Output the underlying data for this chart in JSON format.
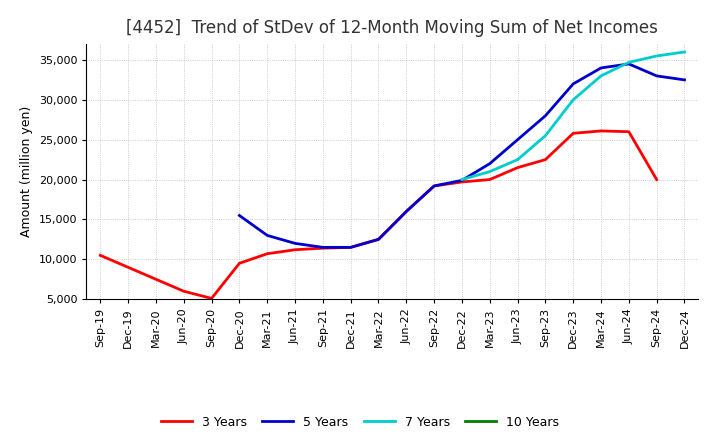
{
  "title": "[4452]  Trend of StDev of 12-Month Moving Sum of Net Incomes",
  "ylabel": "Amount (million yen)",
  "ylim": [
    5000,
    37000
  ],
  "yticks": [
    5000,
    10000,
    15000,
    20000,
    25000,
    30000,
    35000
  ],
  "background_color": "#ffffff",
  "grid_color": "#bbbbbb",
  "series": {
    "3 Years": {
      "color": "#ff0000",
      "x": [
        "Sep-19",
        "Dec-19",
        "Mar-20",
        "Jun-20",
        "Sep-20",
        "Dec-20",
        "Mar-21",
        "Jun-21",
        "Sep-21",
        "Dec-21",
        "Mar-22",
        "Jun-22",
        "Sep-22",
        "Dec-22",
        "Mar-23",
        "Jun-23",
        "Sep-23",
        "Dec-23",
        "Mar-24",
        "Jun-24",
        "Sep-24"
      ],
      "y": [
        10500,
        9000,
        7500,
        6000,
        5100,
        9500,
        10700,
        11200,
        11400,
        11500,
        12500,
        16000,
        19200,
        19700,
        20000,
        21500,
        22500,
        25800,
        26100,
        26000,
        20000
      ]
    },
    "5 Years": {
      "color": "#0000cc",
      "x": [
        "Dec-20",
        "Mar-21",
        "Jun-21",
        "Sep-21",
        "Dec-21",
        "Mar-22",
        "Jun-22",
        "Sep-22",
        "Dec-22",
        "Mar-23",
        "Jun-23",
        "Sep-23",
        "Dec-23",
        "Mar-24",
        "Jun-24",
        "Sep-24",
        "Dec-24"
      ],
      "y": [
        15500,
        13000,
        12000,
        11500,
        11500,
        12500,
        16000,
        19200,
        19900,
        22000,
        25000,
        28000,
        32000,
        34000,
        34500,
        33000,
        32500
      ]
    },
    "7 Years": {
      "color": "#00cccc",
      "x": [
        "Dec-22",
        "Mar-23",
        "Jun-23",
        "Sep-23",
        "Dec-23",
        "Mar-24",
        "Jun-24",
        "Sep-24",
        "Dec-24"
      ],
      "y": [
        20000,
        21000,
        22500,
        25500,
        30000,
        33000,
        34700,
        35500,
        36000
      ]
    },
    "10 Years": {
      "color": "#008000",
      "x": [],
      "y": []
    }
  },
  "x_labels": [
    "Sep-19",
    "Dec-19",
    "Mar-20",
    "Jun-20",
    "Sep-20",
    "Dec-20",
    "Mar-21",
    "Jun-21",
    "Sep-21",
    "Dec-21",
    "Mar-22",
    "Jun-22",
    "Sep-22",
    "Dec-22",
    "Mar-23",
    "Jun-23",
    "Sep-23",
    "Dec-23",
    "Mar-24",
    "Jun-24",
    "Sep-24",
    "Dec-24"
  ],
  "legend_order": [
    "3 Years",
    "5 Years",
    "7 Years",
    "10 Years"
  ],
  "legend_colors": {
    "3 Years": "#ff0000",
    "5 Years": "#0000cc",
    "7 Years": "#00cccc",
    "10 Years": "#008000"
  },
  "title_fontsize": 12,
  "axis_fontsize": 8,
  "ylabel_fontsize": 9,
  "linewidth": 2.0
}
